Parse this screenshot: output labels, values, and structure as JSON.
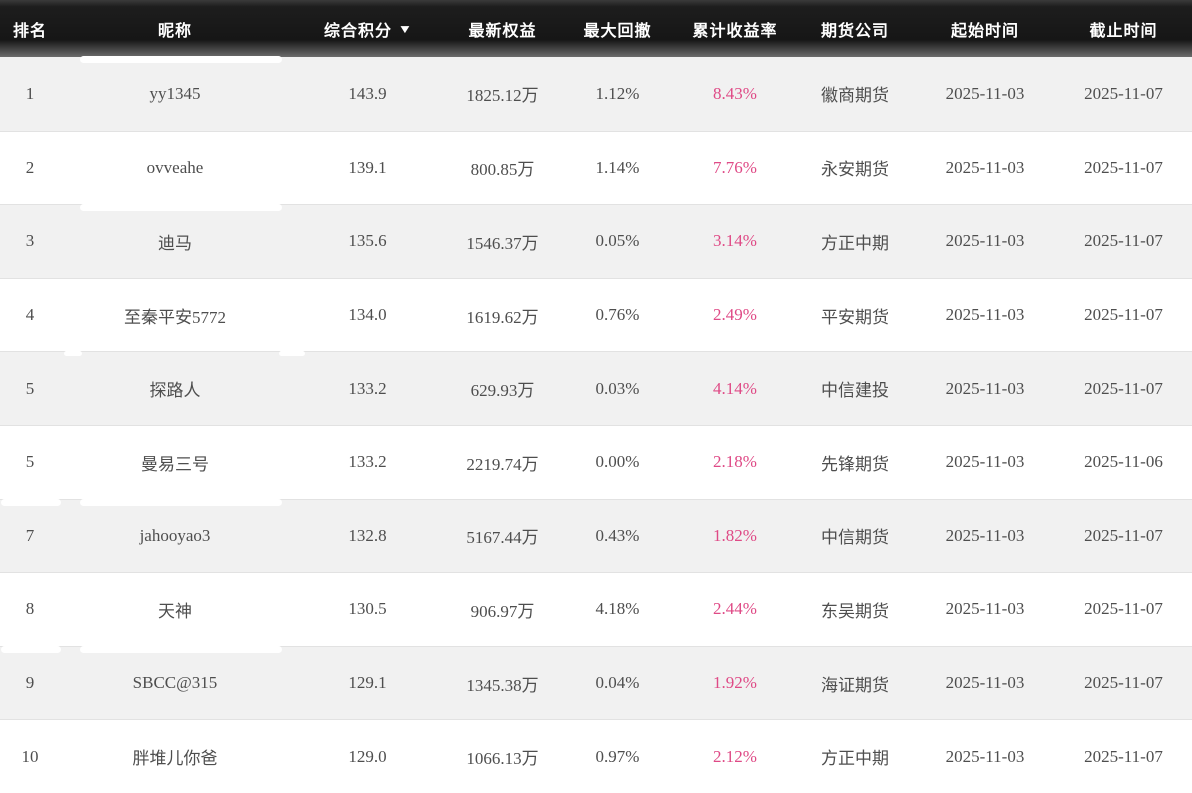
{
  "table": {
    "columns": [
      {
        "key": "rank",
        "label": "排名"
      },
      {
        "key": "nickname",
        "label": "昵称"
      },
      {
        "key": "score",
        "label": "综合积分",
        "sort_icon": "▼",
        "sorted": "desc"
      },
      {
        "key": "equity",
        "label": "最新权益"
      },
      {
        "key": "drawdown",
        "label": "最大回撤"
      },
      {
        "key": "return_rate",
        "label": "累计收益率"
      },
      {
        "key": "company",
        "label": "期货公司"
      },
      {
        "key": "start_date",
        "label": "起始时间"
      },
      {
        "key": "end_date",
        "label": "截止时间"
      }
    ],
    "rows": [
      {
        "rank": "1",
        "nickname": "yy1345",
        "score": "143.9",
        "equity": "1825.12万",
        "drawdown": "1.12%",
        "return_rate": "8.43%",
        "company": "徽商期货",
        "start_date": "2025-11-03",
        "end_date": "2025-11-07"
      },
      {
        "rank": "2",
        "nickname": "ovveahe",
        "score": "139.1",
        "equity": "800.85万",
        "drawdown": "1.14%",
        "return_rate": "7.76%",
        "company": "永安期货",
        "start_date": "2025-11-03",
        "end_date": "2025-11-07"
      },
      {
        "rank": "3",
        "nickname": "迪马",
        "score": "135.6",
        "equity": "1546.37万",
        "drawdown": "0.05%",
        "return_rate": "3.14%",
        "company": "方正中期",
        "start_date": "2025-11-03",
        "end_date": "2025-11-07"
      },
      {
        "rank": "4",
        "nickname": "至秦平安5772",
        "score": "134.0",
        "equity": "1619.62万",
        "drawdown": "0.76%",
        "return_rate": "2.49%",
        "company": "平安期货",
        "start_date": "2025-11-03",
        "end_date": "2025-11-07"
      },
      {
        "rank": "5",
        "nickname": "探路人",
        "score": "133.2",
        "equity": "629.93万",
        "drawdown": "0.03%",
        "return_rate": "4.14%",
        "company": "中信建投",
        "start_date": "2025-11-03",
        "end_date": "2025-11-07"
      },
      {
        "rank": "5",
        "nickname": "曼易三号",
        "score": "133.2",
        "equity": "2219.74万",
        "drawdown": "0.00%",
        "return_rate": "2.18%",
        "company": "先锋期货",
        "start_date": "2025-11-03",
        "end_date": "2025-11-06"
      },
      {
        "rank": "7",
        "nickname": "jahooyao3",
        "score": "132.8",
        "equity": "5167.44万",
        "drawdown": "0.43%",
        "return_rate": "1.82%",
        "company": "中信期货",
        "start_date": "2025-11-03",
        "end_date": "2025-11-07"
      },
      {
        "rank": "8",
        "nickname": "天神",
        "score": "130.5",
        "equity": "906.97万",
        "drawdown": "4.18%",
        "return_rate": "2.44%",
        "company": "东吴期货",
        "start_date": "2025-11-03",
        "end_date": "2025-11-07"
      },
      {
        "rank": "9",
        "nickname": "SBCC@315",
        "score": "129.1",
        "equity": "1345.38万",
        "drawdown": "0.04%",
        "return_rate": "1.92%",
        "company": "海证期货",
        "start_date": "2025-11-03",
        "end_date": "2025-11-07"
      },
      {
        "rank": "10",
        "nickname": "胖堆儿你爸",
        "score": "129.0",
        "equity": "1066.13万",
        "drawdown": "0.97%",
        "return_rate": "2.12%",
        "company": "方正中期",
        "start_date": "2025-11-03",
        "end_date": "2025-11-07"
      }
    ]
  },
  "colors": {
    "header_bg": "#161616",
    "header_text": "#ffffff",
    "row_alt_bg": "#f1f1f1",
    "row_bg": "#ffffff",
    "divider": "#e2e2e2",
    "body_text": "#4e4e4e",
    "return_rate_text": "#df4a86"
  },
  "icons": {
    "sort_desc_icon": "▼"
  }
}
